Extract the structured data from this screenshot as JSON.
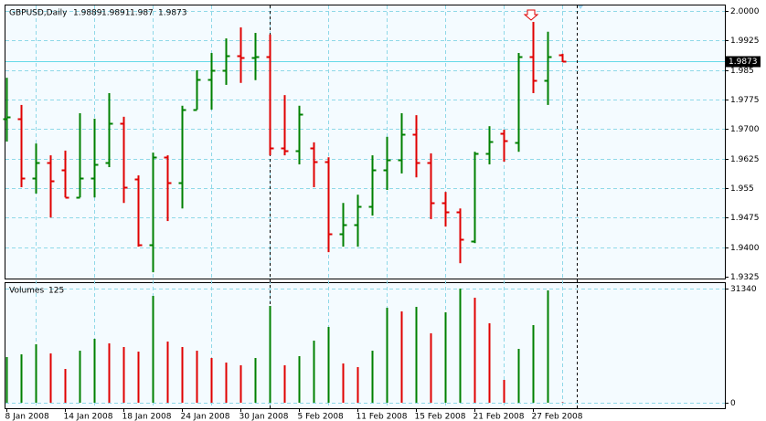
{
  "chart_data": [
    {
      "type": "ohlc",
      "title": "GBPUSD,Daily",
      "categories": [
        "8 Jan 2008",
        null,
        null,
        null,
        "14 Jan 2008",
        null,
        null,
        null,
        "18 Jan 2008",
        null,
        null,
        null,
        "24 Jan 2008",
        null,
        null,
        null,
        "30 Jan 2008",
        null,
        null,
        null,
        "5 Feb 2008",
        null,
        null,
        null,
        "11 Feb 2008",
        null,
        null,
        null,
        "15 Feb 2008",
        null,
        null,
        null,
        "21 Feb 2008",
        null,
        null,
        null,
        "27 Feb 2008",
        null,
        null
      ],
      "open": [
        1.9726,
        1.9726,
        1.9575,
        1.9615,
        1.9596,
        1.9526,
        1.9575,
        1.9615,
        1.9714,
        1.9573,
        1.9406,
        1.9628,
        1.9563,
        1.9749,
        1.9826,
        1.9849,
        1.9886,
        1.9882,
        1.9884,
        1.9652,
        1.9645,
        1.9652,
        1.9617,
        1.9433,
        1.9457,
        1.9503,
        1.9596,
        1.9622,
        1.9687,
        1.9615,
        1.9512,
        1.9489,
        1.9415,
        1.9638,
        1.9689,
        1.9666,
        1.9884,
        1.9824,
        1.9889
      ],
      "high": [
        1.983,
        1.9761,
        1.9663,
        1.9633,
        1.9645,
        1.974,
        1.9726,
        1.9791,
        1.9731,
        1.9582,
        1.964,
        1.9633,
        1.9759,
        1.9849,
        1.9893,
        1.993,
        1.9958,
        1.9944,
        1.994,
        1.9786,
        1.9759,
        1.9666,
        1.9628,
        1.9512,
        1.9533,
        1.9633,
        1.968,
        1.974,
        1.9735,
        1.9638,
        1.954,
        1.9498,
        1.9642,
        1.9707,
        1.9698,
        1.9893,
        1.9972,
        1.9947,
        1.9891
      ],
      "low": [
        1.9668,
        1.9552,
        1.9536,
        1.9475,
        1.9526,
        1.9526,
        1.9526,
        1.9603,
        1.9512,
        1.9401,
        1.9336,
        1.9466,
        1.9498,
        1.9749,
        1.9749,
        1.9812,
        1.9817,
        1.9824,
        1.9633,
        1.9633,
        1.961,
        1.9552,
        1.9387,
        1.9401,
        1.9401,
        1.948,
        1.9545,
        1.9587,
        1.9577,
        1.9471,
        1.9452,
        1.9359,
        1.941,
        1.961,
        1.9617,
        1.9642,
        1.9791,
        1.9761,
        1.987
      ],
      "close": [
        1.9731,
        1.9575,
        1.9615,
        1.9568,
        1.9526,
        1.9575,
        1.961,
        1.9714,
        1.9552,
        1.9406,
        1.9628,
        1.9563,
        1.9749,
        1.9826,
        1.9849,
        1.9886,
        1.9882,
        1.9884,
        1.9652,
        1.9645,
        1.9738,
        1.9617,
        1.9433,
        1.9457,
        1.9503,
        1.9596,
        1.9622,
        1.9687,
        1.9615,
        1.9512,
        1.9489,
        1.9419,
        1.9638,
        1.9668,
        1.967,
        1.9884,
        1.9824,
        1.9884,
        1.9873
      ],
      "up_color": "#008000",
      "down_color": "#e00000",
      "last_line_color": "#66d9e8",
      "ylim": [
        1.932,
        2.0016
      ],
      "yticks": [
        {
          "value": 2.0,
          "label": "2.0000"
        },
        1.9925,
        1.985,
        1.9775,
        {
          "value": 1.97,
          "label": "1.9700"
        },
        1.9625,
        1.955,
        1.9475,
        {
          "value": 1.94,
          "label": "1.9400"
        },
        1.9325
      ],
      "grid": true
    },
    {
      "type": "volume",
      "title": "Volumes",
      "values": [
        12535,
        13288,
        16045,
        13538,
        9276,
        14290,
        17549,
        16296,
        15293,
        14039,
        29332,
        16797,
        15293,
        14290,
        12284,
        11031,
        10279,
        12284,
        26574,
        10279,
        12786,
        17048,
        20808,
        10780,
        9777,
        14290,
        26073,
        25070,
        26324,
        19053,
        24819,
        31340,
        28831,
        21811,
        6268,
        14791,
        21310,
        30836,
        125
      ],
      "up_color": "#008000",
      "down_color": "#e00000",
      "ylim": [
        -1504,
        33095
      ],
      "yticks": [
        31340,
        0
      ],
      "grid": true
    }
  ]
}
